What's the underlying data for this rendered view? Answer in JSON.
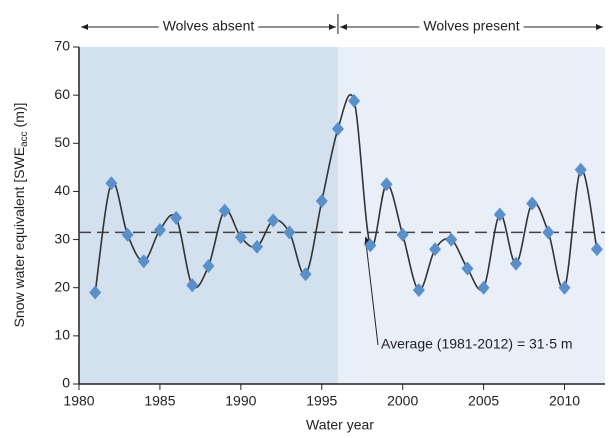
{
  "chart_data": {
    "type": "line",
    "xlabel": "Water year",
    "ylabel": "Snow water equivalent [SWE",
    "ylabel_sub": "acc",
    "ylabel_end": " (m)]",
    "x": [
      1981,
      1982,
      1983,
      1984,
      1985,
      1986,
      1987,
      1988,
      1989,
      1990,
      1991,
      1992,
      1993,
      1994,
      1995,
      1996,
      1997,
      1998,
      1999,
      2000,
      2001,
      2002,
      2003,
      2004,
      2005,
      2006,
      2007,
      2008,
      2009,
      2010,
      2011,
      2012
    ],
    "series": [
      {
        "name": "SWEacc",
        "color": "#5b8fc9",
        "values": [
          19,
          41.7,
          31,
          25.5,
          32,
          34.5,
          20.5,
          24.5,
          36,
          30.5,
          28.5,
          34,
          31.5,
          22.8,
          38,
          53,
          58.8,
          28.8,
          41.5,
          31,
          19.5,
          28,
          30,
          24,
          20,
          35.2,
          25,
          37.5,
          31.5,
          20,
          44.5,
          28
        ]
      }
    ],
    "xlim": [
      1980,
      2012.5
    ],
    "ylim": [
      0,
      70
    ],
    "xticks": [
      1980,
      1985,
      1990,
      1995,
      2000,
      2005,
      2010
    ],
    "yticks": [
      0,
      10,
      20,
      30,
      40,
      50,
      60,
      70
    ],
    "regions": [
      {
        "label": "Wolves absent",
        "start": 1980,
        "end": 1996,
        "color": "#d3e1ef"
      },
      {
        "label": "Wolves present",
        "start": 1996,
        "end": 2012.5,
        "color": "#e9eff8"
      }
    ],
    "average": {
      "value": 31.5,
      "label": "Average (1981-2012) = 31·5 m"
    }
  }
}
